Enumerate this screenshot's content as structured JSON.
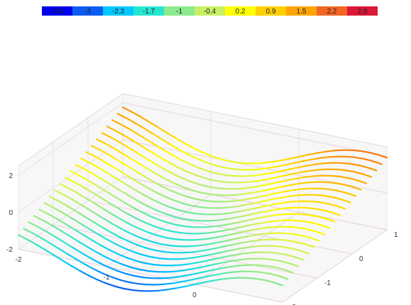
{
  "chart_data": {
    "type": "line",
    "subtype": "3d-surface-wireframe",
    "title": "",
    "xlabel": "",
    "ylabel": "",
    "zlabel": "",
    "x_range": [
      -2,
      1
    ],
    "y_range": [
      -2,
      1
    ],
    "z_range": [
      -2,
      2.5
    ],
    "x_ticks": [
      "-2",
      "-1",
      "0",
      "1"
    ],
    "y_ticks": [
      "-2",
      "-1",
      "0",
      "1"
    ],
    "z_ticks": [
      "-2",
      "0",
      "2"
    ],
    "grid": true,
    "legend_position": "top-center",
    "legend": [
      {
        "label": "-3.6",
        "color": "#0000ee"
      },
      {
        "label": "-3",
        "color": "#0b5cf2"
      },
      {
        "label": "-2.3",
        "color": "#00c8ff"
      },
      {
        "label": "-1.7",
        "color": "#26e5d0"
      },
      {
        "label": "-1",
        "color": "#8ce98c"
      },
      {
        "label": "-0.4",
        "color": "#c8f064"
      },
      {
        "label": "0.2",
        "color": "#ffff00"
      },
      {
        "label": "0.9",
        "color": "#ffd000"
      },
      {
        "label": "1.5",
        "color": "#ffa500"
      },
      {
        "label": "2.2",
        "color": "#f26522"
      },
      {
        "label": "2.8",
        "color": "#dd1736"
      }
    ],
    "function_description_of_curves": "sin(2x) + y",
    "series_lines_along_x": 21,
    "samples_per_line": 31
  }
}
